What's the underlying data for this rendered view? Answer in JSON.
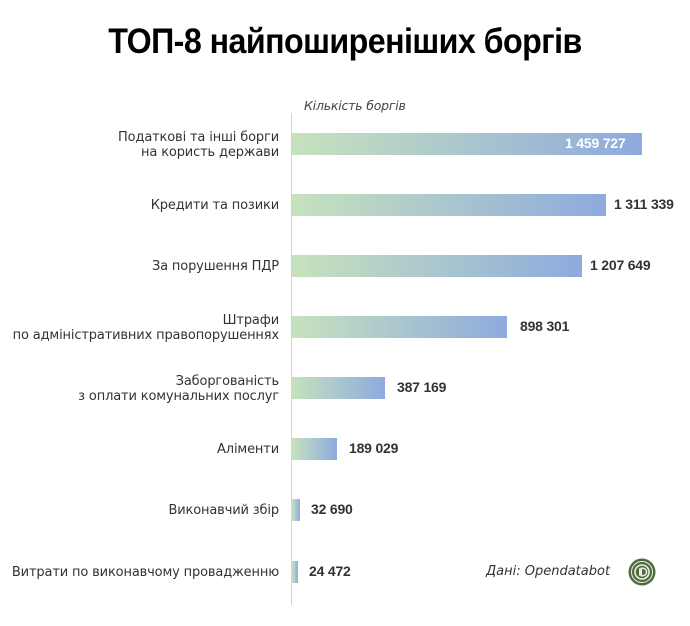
{
  "header": {
    "title": "ТОП-8 найпоширеніших боргів"
  },
  "axis": {
    "label": "Кількість боргів"
  },
  "source": {
    "text": "Дані: Opendatabot",
    "logo_icon": "opendatabot-logo-icon"
  },
  "colors": {
    "gradient_start": "#c6e2bd",
    "gradient_end": "#8eaade",
    "logo": "#4f6b3f"
  },
  "rows": [
    {
      "label_line1": "Податкові та інші борги",
      "label_line2": "на користь держави",
      "value_text": "1 459 727"
    },
    {
      "label_line1": "Кредити та позики",
      "label_line2": "",
      "value_text": "1 311 339"
    },
    {
      "label_line1": "За порушення ПДР",
      "label_line2": "",
      "value_text": "1 207 649"
    },
    {
      "label_line1": "Штрафи",
      "label_line2": "по адміністративних правопорушеннях",
      "value_text": "898 301"
    },
    {
      "label_line1": "Заборгованість",
      "label_line2": "з оплати комунальних послуг",
      "value_text": "387 169"
    },
    {
      "label_line1": "Аліменти",
      "label_line2": "",
      "value_text": "189 029"
    },
    {
      "label_line1": "Виконавчий збір",
      "label_line2": "",
      "value_text": "32 690"
    },
    {
      "label_line1": "Витрати по виконавчому провадженню",
      "label_line2": "",
      "value_text": "24 472"
    }
  ],
  "chart_data": {
    "type": "bar",
    "orientation": "horizontal",
    "title": "ТОП-8 найпоширеніших боргів",
    "xlabel": "Кількість боргів",
    "ylabel": "",
    "categories": [
      "Податкові та інші борги на користь держави",
      "Кредити та позики",
      "За порушення ПДР",
      "Штрафи по адміністративних правопорушеннях",
      "Заборгованість з оплати комунальних послуг",
      "Аліменти",
      "Виконавчий збір",
      "Витрати по виконавчому провадженню"
    ],
    "values": [
      1459727,
      1311339,
      1207649,
      898301,
      387169,
      189029,
      32690,
      24472
    ],
    "xlim": [
      0,
      1459727
    ],
    "grid": false,
    "legend": null,
    "annotations": [
      "Дані: Opendatabot"
    ]
  }
}
